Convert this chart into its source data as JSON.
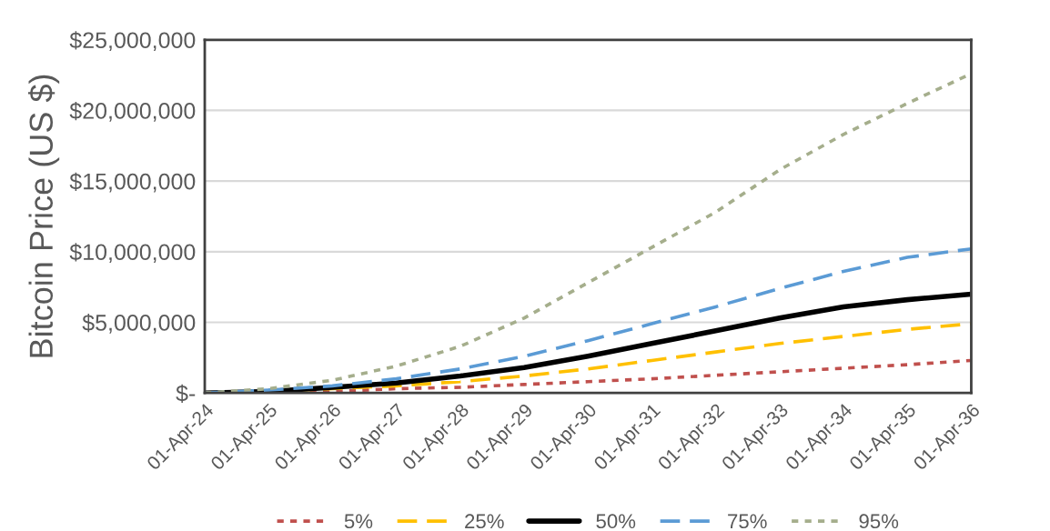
{
  "chart_data": {
    "type": "line",
    "ylabel": "Bitcoin Price (US $)",
    "x": [
      "2024-04-01",
      "2025-04-01",
      "2026-04-01",
      "2027-04-01",
      "2028-04-01",
      "2029-04-01",
      "2030-04-01",
      "2031-04-01",
      "2032-04-01",
      "2033-04-01",
      "2034-04-01",
      "2035-04-01",
      "2036-04-01"
    ],
    "series": [
      {
        "name": "5%",
        "color": "#c0504d",
        "line_style": "dotted",
        "values": [
          0,
          0,
          100000,
          300000,
          400000,
          600000,
          800000,
          1000000,
          1250000,
          1500000,
          1750000,
          2000000,
          2300000
        ]
      },
      {
        "name": "25%",
        "color": "#ffc000",
        "line_style": "dashed",
        "values": [
          0,
          100000,
          300000,
          500000,
          800000,
          1200000,
          1700000,
          2300000,
          2900000,
          3500000,
          4000000,
          4500000,
          4900000
        ]
      },
      {
        "name": "50%",
        "color": "#000000",
        "line_style": "solid",
        "values": [
          0,
          100000,
          400000,
          700000,
          1200000,
          1800000,
          2600000,
          3500000,
          4400000,
          5300000,
          6100000,
          6600000,
          7000000
        ]
      },
      {
        "name": "75%",
        "color": "#5b9bd5",
        "line_style": "dashed",
        "values": [
          0,
          200000,
          500000,
          1000000,
          1700000,
          2600000,
          3700000,
          4900000,
          6100000,
          7400000,
          8600000,
          9600000,
          10200000
        ]
      },
      {
        "name": "95%",
        "color": "#a5ae8c",
        "line_style": "dotted",
        "values": [
          0,
          300000,
          900000,
          1900000,
          3300000,
          5300000,
          7800000,
          10300000,
          12800000,
          15800000,
          18300000,
          20500000,
          22600000
        ]
      }
    ],
    "xlim": [
      "2024-04-01",
      "2036-04-01"
    ],
    "xticks": [
      {
        "value": "2024-04-01",
        "label": "01-Apr-24"
      },
      {
        "value": "2025-04-01",
        "label": "01-Apr-25"
      },
      {
        "value": "2026-04-01",
        "label": "01-Apr-26"
      },
      {
        "value": "2027-04-01",
        "label": "01-Apr-27"
      },
      {
        "value": "2028-04-01",
        "label": "01-Apr-28"
      },
      {
        "value": "2029-04-01",
        "label": "01-Apr-29"
      },
      {
        "value": "2030-04-01",
        "label": "01-Apr-30"
      },
      {
        "value": "2031-04-01",
        "label": "01-Apr-31"
      },
      {
        "value": "2032-04-01",
        "label": "01-Apr-32"
      },
      {
        "value": "2033-04-01",
        "label": "01-Apr-33"
      },
      {
        "value": "2034-04-01",
        "label": "01-Apr-34"
      },
      {
        "value": "2035-04-01",
        "label": "01-Apr-35"
      },
      {
        "value": "2036-04-01",
        "label": "01-Apr-36"
      }
    ],
    "ylim": [
      0,
      25000000
    ],
    "yticks": [
      {
        "value": 0,
        "label": "$-"
      },
      {
        "value": 5000000,
        "label": "$5,000,000"
      },
      {
        "value": 10000000,
        "label": "$10,000,000"
      },
      {
        "value": 15000000,
        "label": "$15,000,000"
      },
      {
        "value": 20000000,
        "label": "$20,000,000"
      },
      {
        "value": 25000000,
        "label": "$25,000,000"
      }
    ],
    "grid": "y",
    "legend": "bottom"
  }
}
